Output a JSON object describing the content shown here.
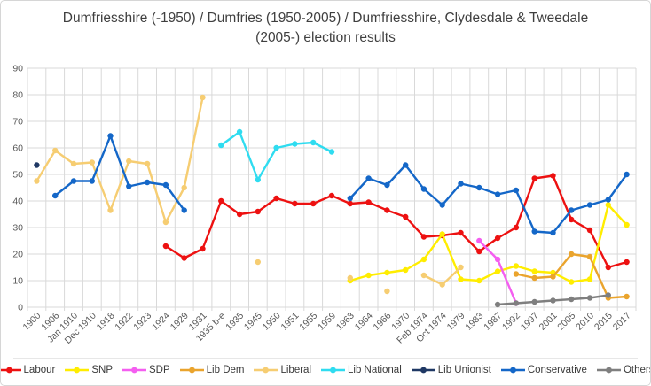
{
  "window": {
    "background": "#ffffff",
    "border_color": "#d6d6d6"
  },
  "chart_data": {
    "type": "line",
    "title": "Dumfriesshire (-1950) / Dumfries (1950-2005) / Dumfriesshire, Clydesdale & Tweedale (2005-) election results",
    "xlabel": "",
    "ylabel": "",
    "ylim": [
      0,
      90
    ],
    "ytick_step": 10,
    "grid": true,
    "legend_position": "bottom",
    "gridline_color": "#d9d9d9",
    "axis_label_color": "#595959",
    "title_color": "#3f3f3f",
    "categories": [
      "1900",
      "1906",
      "Jan 1910",
      "Dec 1910",
      "1918",
      "1922",
      "1923",
      "1924",
      "1929",
      "1931",
      "1935 b-e",
      "1935",
      "1945",
      "1950",
      "1951",
      "1955",
      "1959",
      "1963",
      "1964",
      "1966",
      "1970",
      "Feb 1974",
      "Oct 1974",
      "1979",
      "1983",
      "1987",
      "1992",
      "1997",
      "2001",
      "2005",
      "2010",
      "2015",
      "2017"
    ],
    "series": [
      {
        "name": "Labour",
        "color": "#ed1111",
        "values": [
          null,
          null,
          null,
          null,
          null,
          null,
          null,
          23,
          18.5,
          22,
          40,
          35,
          36,
          41,
          39,
          39,
          42,
          39,
          39.5,
          36.5,
          34,
          26.5,
          27,
          28,
          21,
          26,
          30,
          48.5,
          49.5,
          33,
          29,
          15,
          17
        ]
      },
      {
        "name": "SNP",
        "color": "#ffed00",
        "values": [
          null,
          null,
          null,
          null,
          null,
          null,
          null,
          null,
          null,
          null,
          null,
          null,
          null,
          null,
          null,
          null,
          null,
          10,
          12,
          13,
          14,
          18,
          27.5,
          10.5,
          10,
          13.5,
          15.5,
          13.5,
          13,
          9.5,
          10.5,
          38.5,
          31
        ]
      },
      {
        "name": "SDP",
        "color": "#f45ef0",
        "values": [
          null,
          null,
          null,
          null,
          null,
          null,
          null,
          null,
          null,
          null,
          null,
          null,
          null,
          null,
          null,
          null,
          null,
          null,
          null,
          null,
          null,
          null,
          null,
          null,
          25,
          18,
          1.5,
          null,
          null,
          null,
          null,
          null,
          null
        ]
      },
      {
        "name": "Lib Dem",
        "color": "#eaa42d",
        "values": [
          null,
          null,
          null,
          null,
          null,
          null,
          null,
          null,
          null,
          null,
          null,
          null,
          null,
          null,
          null,
          null,
          null,
          null,
          null,
          null,
          null,
          null,
          null,
          null,
          null,
          null,
          12.5,
          11,
          11.5,
          20,
          19,
          3.5,
          4
        ]
      },
      {
        "name": "Liberal",
        "color": "#f6cd72",
        "values": [
          47.5,
          59,
          54,
          54.5,
          36.5,
          55,
          54,
          32,
          45,
          79,
          null,
          null,
          17,
          null,
          null,
          null,
          null,
          11,
          null,
          6,
          null,
          12,
          8.5,
          15,
          null,
          null,
          null,
          null,
          null,
          null,
          null,
          null,
          null
        ]
      },
      {
        "name": "Lib National",
        "color": "#2fdcf0",
        "values": [
          null,
          null,
          null,
          null,
          null,
          null,
          null,
          null,
          null,
          null,
          61,
          66,
          48,
          60,
          61.5,
          62,
          58.5,
          null,
          null,
          null,
          null,
          null,
          null,
          null,
          null,
          null,
          null,
          null,
          null,
          null,
          null,
          null,
          null
        ]
      },
      {
        "name": "Lib Unionist",
        "color": "#1f3864",
        "values": [
          53.5,
          null,
          null,
          null,
          null,
          null,
          null,
          null,
          null,
          null,
          null,
          null,
          null,
          null,
          null,
          null,
          null,
          null,
          null,
          null,
          null,
          null,
          null,
          null,
          null,
          null,
          null,
          null,
          null,
          null,
          null,
          null,
          null
        ]
      },
      {
        "name": "Conservative",
        "color": "#1467c8",
        "values": [
          null,
          42,
          47.5,
          47.5,
          64.5,
          45.5,
          47,
          46,
          36.5,
          null,
          null,
          null,
          null,
          null,
          null,
          null,
          null,
          41,
          48.5,
          46,
          53.5,
          44.5,
          38.5,
          46.5,
          45,
          42.5,
          44,
          28.5,
          28,
          36.5,
          38.5,
          40.5,
          50
        ]
      },
      {
        "name": "Others",
        "color": "#7f7f7f",
        "values": [
          null,
          null,
          null,
          null,
          null,
          null,
          null,
          null,
          null,
          null,
          null,
          null,
          null,
          null,
          null,
          null,
          null,
          null,
          null,
          null,
          null,
          null,
          null,
          null,
          null,
          1,
          1.5,
          2,
          2.5,
          3,
          3.5,
          4.5,
          null
        ]
      }
    ]
  }
}
